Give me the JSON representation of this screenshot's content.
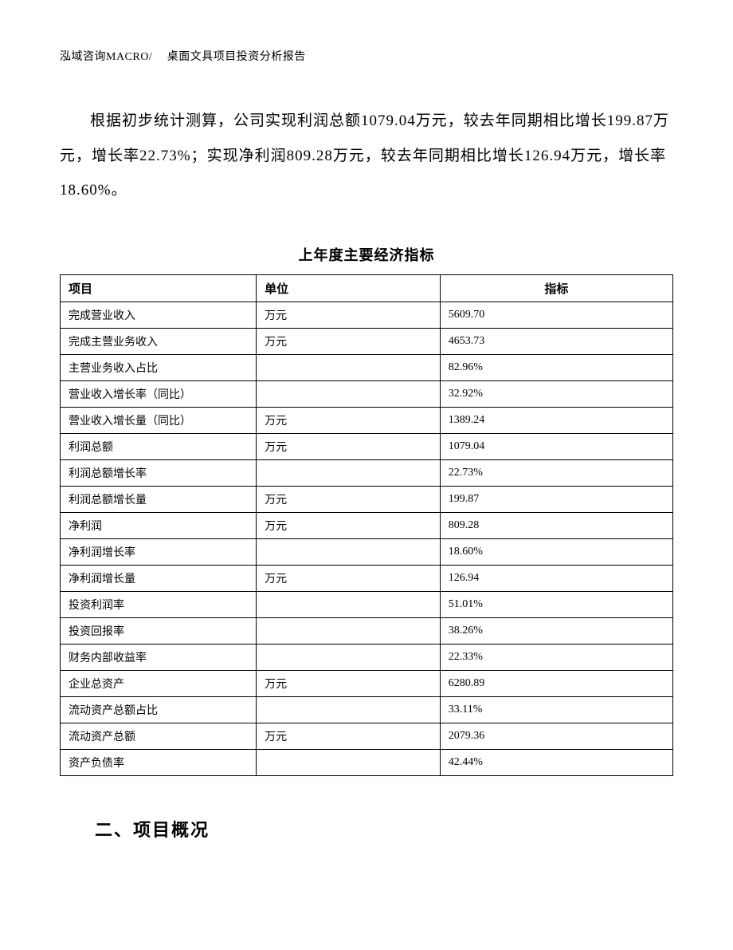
{
  "header": "泓域咨询MACRO/　 桌面文具项目投资分析报告",
  "paragraph": "根据初步统计测算，公司实现利润总额1079.04万元，较去年同期相比增长199.87万元，增长率22.73%；实现净利润809.28万元，较去年同期相比增长126.94万元，增长率18.60%。",
  "table": {
    "title": "上年度主要经济指标",
    "columns": [
      "项目",
      "单位",
      "指标"
    ],
    "column_widths": [
      "32%",
      "30%",
      "38%"
    ],
    "header_align": [
      "left",
      "left",
      "center"
    ],
    "border_color": "#000000",
    "font_size": 14,
    "rows": [
      {
        "item": "完成营业收入",
        "unit": "万元",
        "value": "5609.70"
      },
      {
        "item": "完成主营业务收入",
        "unit": "万元",
        "value": "4653.73"
      },
      {
        "item": "主营业务收入占比",
        "unit": "",
        "value": "82.96%"
      },
      {
        "item": "营业收入增长率（同比）",
        "unit": "",
        "value": "32.92%"
      },
      {
        "item": "营业收入增长量（同比）",
        "unit": "万元",
        "value": "1389.24"
      },
      {
        "item": "利润总额",
        "unit": "万元",
        "value": "1079.04"
      },
      {
        "item": "利润总额增长率",
        "unit": "",
        "value": "22.73%"
      },
      {
        "item": "利润总额增长量",
        "unit": "万元",
        "value": "199.87"
      },
      {
        "item": "净利润",
        "unit": "万元",
        "value": "809.28"
      },
      {
        "item": "净利润增长率",
        "unit": "",
        "value": "18.60%"
      },
      {
        "item": "净利润增长量",
        "unit": "万元",
        "value": "126.94"
      },
      {
        "item": "投资利润率",
        "unit": "",
        "value": "51.01%"
      },
      {
        "item": "投资回报率",
        "unit": "",
        "value": "38.26%"
      },
      {
        "item": "财务内部收益率",
        "unit": "",
        "value": "22.33%"
      },
      {
        "item": "企业总资产",
        "unit": "万元",
        "value": "6280.89"
      },
      {
        "item": "流动资产总额占比",
        "unit": "",
        "value": "33.11%"
      },
      {
        "item": "流动资产总额",
        "unit": "万元",
        "value": "2079.36"
      },
      {
        "item": "资产负债率",
        "unit": "",
        "value": "42.44%"
      }
    ]
  },
  "section_heading": "二、项目概况",
  "colors": {
    "text": "#000000",
    "background": "#ffffff",
    "border": "#000000"
  }
}
